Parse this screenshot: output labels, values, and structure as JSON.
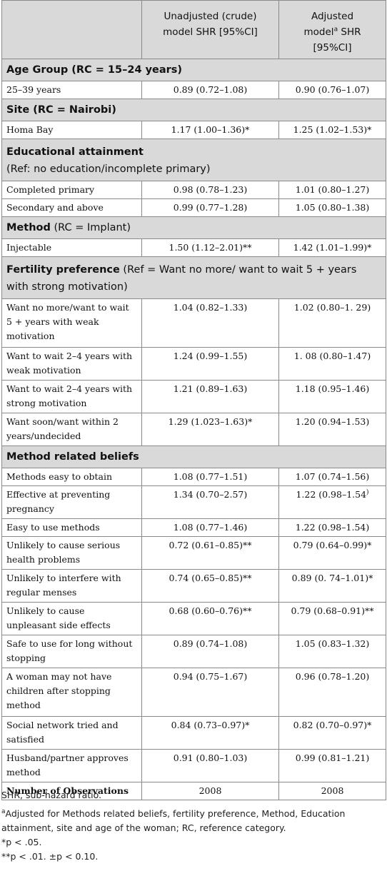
{
  "header": {
    "col1": "",
    "col2_line1": "Unadjusted (crude)",
    "col2_line2": "model SHR [95%CI]",
    "col3_line1": "Adjusted",
    "col3_line2a": "model",
    "col3_sup": "a",
    "col3_line2b": " SHR",
    "col3_line3": "[95%CI]"
  },
  "sections": {
    "age": {
      "bold": "Age Group (RC = 15–24 years)"
    },
    "site": {
      "bold": "Site (RC = Nairobi)"
    },
    "edu": {
      "bold": "Educational attainment",
      "sub": "(Ref: no education/incomplete primary)"
    },
    "method": {
      "bold": "Method",
      "rest": " (RC = Implant)"
    },
    "fert": {
      "bold": "Fertility preference",
      "rest": " (Ref = Want no more/ want to wait 5 + years with strong motivation)"
    },
    "beliefs": {
      "bold": "Method related beliefs"
    }
  },
  "rows": {
    "age1": {
      "label": "25–39 years",
      "crude": "0.89 (0.72–1.08)",
      "adj": "0.90 (0.76–1.07)"
    },
    "site1": {
      "label": "Homa Bay",
      "crude": "1.17 (1.00–1.36)*",
      "adj": "1.25 (1.02–1.53)*"
    },
    "edu1": {
      "label": "Completed primary",
      "crude": "0.98 (0.78–1.23)",
      "adj": "1.01 (0.80–1.27)"
    },
    "edu2": {
      "label": "Secondary and above",
      "crude": "0.99 (0.77–1.28)",
      "adj": "1.05 (0.80–1.38)"
    },
    "meth1": {
      "label": "Injectable",
      "crude": "1.50 (1.12–2.01)**",
      "adj": "1.42 (1.01–1.99)*"
    },
    "fert1": {
      "label": "Want no more/want to wait 5 + years with weak motivation",
      "crude": "1.04 (0.82–1.33)",
      "adj": "1.02 (0.80–1. 29)"
    },
    "fert2": {
      "label": "Want to wait 2–4 years with weak motivation",
      "crude": "1.24 (0.99–1.55)",
      "adj": "1. 08 (0.80–1.47)"
    },
    "fert3": {
      "label": "Want to wait 2–4 years with strong motivation",
      "crude": "1.21 (0.89–1.63)",
      "adj": "1.18 (0.95–1.46)"
    },
    "fert4": {
      "label": "Want soon/want within 2 years/undecided",
      "crude": "1.29 (1.023–1.63)*",
      "adj": "1.20 (0.94–1.53)"
    },
    "b1": {
      "label": "Methods easy to obtain",
      "crude": "1.08 (0.77–1.51)",
      "adj": "1.07 (0.74–1.56)"
    },
    "b2": {
      "label": "Effective at preventing pregnancy",
      "crude": "1.34 (0.70–2.57)",
      "adj": "1.22 (0.98–1.54",
      "adj_sup": ")"
    },
    "b3": {
      "label": "Easy to use methods",
      "crude": "1.08 (0.77–1.46)",
      "adj": "1.22 (0.98–1.54)"
    },
    "b4": {
      "label": "Unlikely to cause serious health problems",
      "crude": "0.72 (0.61–0.85)**",
      "adj": "0.79 (0.64–0.99)*"
    },
    "b5": {
      "label": "Unlikely to interfere with regular menses",
      "crude": "0.74 (0.65–0.85)**",
      "adj": "0.89 (0. 74–1.01)*"
    },
    "b6": {
      "label": "Unlikely to cause unpleasant side effects",
      "crude": "0.68 (0.60–0.76)**",
      "adj": "0.79 (0.68–0.91)**"
    },
    "b7": {
      "label": "Safe to use for long without stopping",
      "crude": "0.89 (0.74–1.08)",
      "adj": "1.05 (0.83–1.32)"
    },
    "b8": {
      "label": "A woman may not have children after stopping method",
      "crude": "0.94 (0.75–1.67)",
      "adj": "0.96 (0.78–1.20)"
    },
    "b9": {
      "label": "Social network tried and satisfied",
      "crude": "0.84 (0.73–0.97)*",
      "adj": "0.82 (0.70–0.97)*"
    },
    "b10": {
      "label": "Husband/partner approves method",
      "crude": "0.91 (0.80–1.03)",
      "adj": "0.99 (0.81–1.21)"
    },
    "total": {
      "label": "Number of Observations",
      "crude": "2008",
      "adj": "2008"
    }
  },
  "notes": {
    "shr": "SHR, sub-hazard ratio.",
    "a_sup": "a",
    "a_text": "Adjusted for Methods related beliefs, fertility preference, Method, Education attainment, site and age of the woman; RC, reference category.",
    "p1": "*p < .05.",
    "p2": "**p < .01. ±p < 0.10."
  }
}
